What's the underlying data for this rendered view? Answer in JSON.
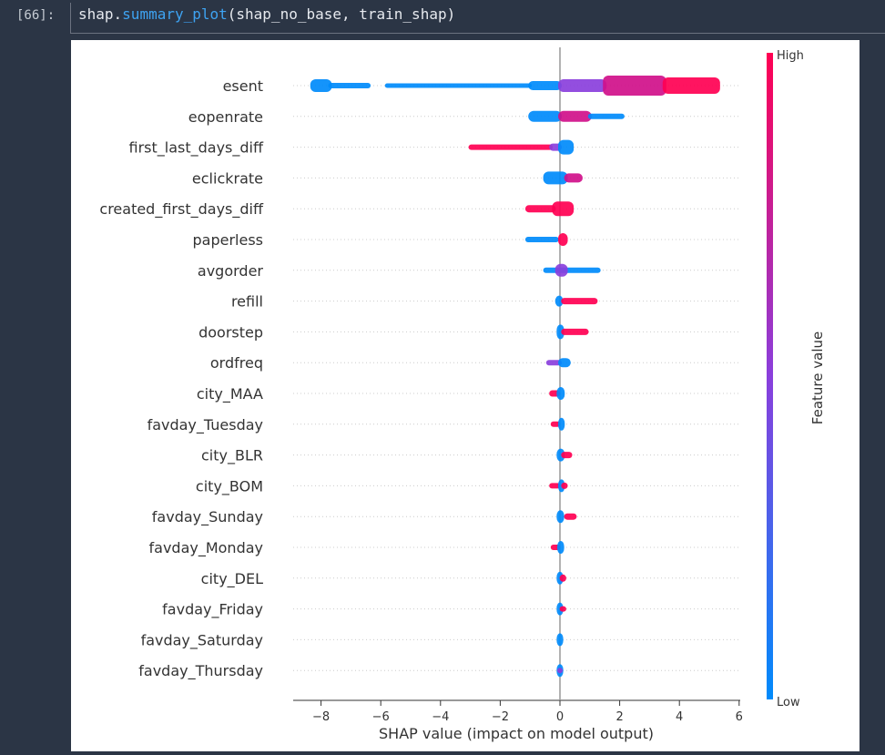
{
  "cell": {
    "prompt": "[66]:",
    "code_prefix": "shap.",
    "code_function": "summary_plot",
    "code_args": "(shap_no_base, train_shap)"
  },
  "colors": {
    "low": "#008bfb",
    "high": "#ff0052",
    "mid": "#8a3fdc",
    "magenta": "#d0108a",
    "background": "#2b3545"
  },
  "chart_data": {
    "type": "scatter",
    "subtype": "shap-beeswarm",
    "xlabel": "SHAP value (impact on model output)",
    "xlim": [
      -8.9,
      6.0
    ],
    "xticks": [
      -8,
      -6,
      -4,
      -2,
      0,
      2,
      4,
      6
    ],
    "xtick_labels": [
      "−8",
      "−6",
      "−4",
      "−2",
      "0",
      "2",
      "4",
      "6"
    ],
    "colorbar": {
      "label": "Feature value",
      "high_label": "High",
      "low_label": "Low"
    },
    "features": [
      {
        "name": "esent",
        "segments": [
          {
            "from": -8.3,
            "to": -7.7,
            "c": "low",
            "w": 14
          },
          {
            "from": -7.7,
            "to": -6.4,
            "c": "low",
            "w": 6
          },
          {
            "from": -5.8,
            "to": -1.0,
            "c": "low",
            "w": 5
          },
          {
            "from": -1.0,
            "to": 0.0,
            "c": "low",
            "w": 10
          },
          {
            "from": 0.0,
            "to": 1.5,
            "c": "mid",
            "w": 14
          },
          {
            "from": 1.5,
            "to": 3.5,
            "c": "magenta",
            "w": 22
          },
          {
            "from": 3.5,
            "to": 5.3,
            "c": "high",
            "w": 18
          }
        ]
      },
      {
        "name": "eopenrate",
        "segments": [
          {
            "from": -1.0,
            "to": 0.0,
            "c": "low",
            "w": 12
          },
          {
            "from": 0.0,
            "to": 1.0,
            "c": "magenta",
            "w": 12
          },
          {
            "from": 1.0,
            "to": 2.1,
            "c": "low",
            "w": 6
          }
        ]
      },
      {
        "name": "first_last_days_diff",
        "segments": [
          {
            "from": -3.0,
            "to": -0.3,
            "c": "high",
            "w": 6
          },
          {
            "from": -0.3,
            "to": 0.0,
            "c": "mid",
            "w": 8
          },
          {
            "from": 0.0,
            "to": 0.4,
            "c": "low",
            "w": 16
          }
        ]
      },
      {
        "name": "eclickrate",
        "segments": [
          {
            "from": -0.5,
            "to": 0.2,
            "c": "low",
            "w": 14
          },
          {
            "from": 0.2,
            "to": 0.7,
            "c": "magenta",
            "w": 10
          }
        ]
      },
      {
        "name": "created_first_days_diff",
        "segments": [
          {
            "from": -1.1,
            "to": -0.2,
            "c": "high",
            "w": 8
          },
          {
            "from": -0.2,
            "to": 0.4,
            "c": "high",
            "w": 16
          }
        ]
      },
      {
        "name": "paperless",
        "segments": [
          {
            "from": -1.1,
            "to": -0.1,
            "c": "low",
            "w": 6
          },
          {
            "from": 0.0,
            "to": 0.2,
            "c": "high",
            "w": 14
          }
        ]
      },
      {
        "name": "avgorder",
        "segments": [
          {
            "from": -0.5,
            "to": 1.3,
            "c": "low",
            "w": 6
          },
          {
            "from": -0.1,
            "to": 0.2,
            "c": "mid",
            "w": 14
          }
        ]
      },
      {
        "name": "refill",
        "segments": [
          {
            "from": -0.1,
            "to": 0.05,
            "c": "low",
            "w": 12
          },
          {
            "from": 0.1,
            "to": 1.2,
            "c": "high",
            "w": 7
          }
        ]
      },
      {
        "name": "doorstep",
        "segments": [
          {
            "from": -0.05,
            "to": 0.08,
            "c": "low",
            "w": 16
          },
          {
            "from": 0.1,
            "to": 0.9,
            "c": "high",
            "w": 7
          }
        ]
      },
      {
        "name": "ordfreq",
        "segments": [
          {
            "from": -0.4,
            "to": 0.0,
            "c": "mid",
            "w": 6
          },
          {
            "from": 0.0,
            "to": 0.3,
            "c": "low",
            "w": 10
          }
        ]
      },
      {
        "name": "city_MAA",
        "segments": [
          {
            "from": -0.3,
            "to": -0.05,
            "c": "high",
            "w": 7
          },
          {
            "from": -0.05,
            "to": 0.1,
            "c": "low",
            "w": 14
          }
        ]
      },
      {
        "name": "favday_Tuesday",
        "segments": [
          {
            "from": -0.25,
            "to": -0.05,
            "c": "high",
            "w": 6
          },
          {
            "from": 0.0,
            "to": 0.1,
            "c": "low",
            "w": 14
          }
        ]
      },
      {
        "name": "city_BLR",
        "segments": [
          {
            "from": -0.05,
            "to": 0.1,
            "c": "low",
            "w": 14
          },
          {
            "from": 0.1,
            "to": 0.35,
            "c": "high",
            "w": 7
          }
        ]
      },
      {
        "name": "city_BOM",
        "segments": [
          {
            "from": -0.3,
            "to": -0.05,
            "c": "high",
            "w": 6
          },
          {
            "from": 0.0,
            "to": 0.1,
            "c": "low",
            "w": 14
          },
          {
            "from": 0.1,
            "to": 0.2,
            "c": "high",
            "w": 7
          }
        ]
      },
      {
        "name": "favday_Sunday",
        "segments": [
          {
            "from": -0.05,
            "to": 0.08,
            "c": "low",
            "w": 14
          },
          {
            "from": 0.2,
            "to": 0.5,
            "c": "high",
            "w": 7
          }
        ]
      },
      {
        "name": "favday_Monday",
        "segments": [
          {
            "from": -0.25,
            "to": -0.05,
            "c": "high",
            "w": 6
          },
          {
            "from": -0.03,
            "to": 0.08,
            "c": "low",
            "w": 14
          }
        ]
      },
      {
        "name": "city_DEL",
        "segments": [
          {
            "from": -0.05,
            "to": 0.05,
            "c": "low",
            "w": 14
          },
          {
            "from": 0.05,
            "to": 0.15,
            "c": "high",
            "w": 8
          }
        ]
      },
      {
        "name": "favday_Friday",
        "segments": [
          {
            "from": -0.05,
            "to": 0.05,
            "c": "low",
            "w": 14
          },
          {
            "from": 0.05,
            "to": 0.15,
            "c": "high",
            "w": 6
          }
        ]
      },
      {
        "name": "favday_Saturday",
        "segments": [
          {
            "from": -0.05,
            "to": 0.05,
            "c": "low",
            "w": 14
          }
        ]
      },
      {
        "name": "favday_Thursday",
        "segments": [
          {
            "from": -0.05,
            "to": 0.05,
            "c": "low",
            "w": 14
          },
          {
            "from": -0.03,
            "to": 0.03,
            "c": "mid",
            "w": 6
          }
        ]
      }
    ]
  }
}
